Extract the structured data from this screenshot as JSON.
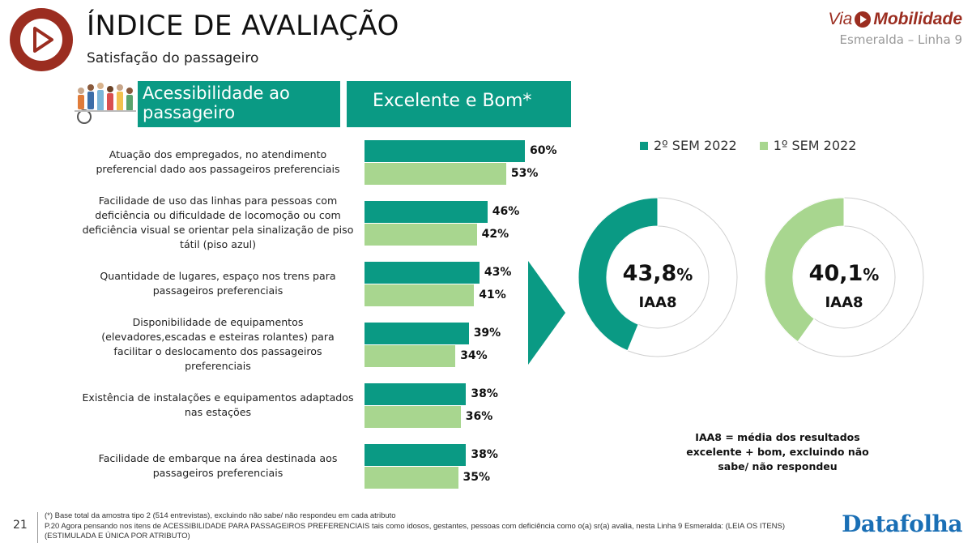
{
  "header": {
    "title": "ÍNDICE DE AVALIAÇÃO",
    "subtitle": "Satisfação do passageiro",
    "brand_via": "Via",
    "brand_mobilidade": "Mobilidade",
    "brand_line": "Esmeralda – Linha 9",
    "logo_icon": "play-icon"
  },
  "section": {
    "title": "Acessibilidade ao passageiro",
    "metric": "Excelente e Bom*"
  },
  "colors": {
    "series_2_sem_2022": "#0a9a84",
    "series_1_sem_2022": "#a8d68f",
    "brand": "#9b2d20"
  },
  "chart_data": [
    {
      "type": "bar",
      "orientation": "horizontal",
      "categories": [
        "Atuação dos empregados, no atendimento preferencial dado aos passageiros preferenciais",
        "Facilidade de uso das linhas para pessoas com deficiência ou dificuldade de locomoção ou com deficiência visual se orientar pela sinalização de piso tátil (piso azul)",
        "Quantidade de lugares, espaço nos trens para passageiros preferenciais",
        "Disponibilidade de equipamentos (elevadores,escadas e esteiras rolantes) para facilitar o deslocamento dos passageiros preferenciais",
        "Existência de instalações e equipamentos adaptados nas estações",
        "Facilidade de embarque na área destinada aos passageiros preferenciais"
      ],
      "series": [
        {
          "name": "2º SEM 2022",
          "values": [
            60,
            46,
            43,
            39,
            38,
            38
          ],
          "labels": [
            "60%",
            "46%",
            "43%",
            "39%",
            "38%",
            "38%"
          ]
        },
        {
          "name": "1º SEM 2022",
          "values": [
            53,
            42,
            41,
            34,
            36,
            35
          ],
          "labels": [
            "53%",
            "42%",
            "41%",
            "34%",
            "36%",
            "35%"
          ]
        }
      ],
      "unit": "%",
      "xlim": [
        0,
        100
      ],
      "grid": false
    },
    {
      "type": "pie",
      "variant": "donut",
      "legend": [
        "2º SEM 2022",
        "1º SEM 2022"
      ],
      "legend_position": "top",
      "donuts": [
        {
          "series": "2º SEM 2022",
          "value": 43.8,
          "number": "43,8",
          "unit": "%",
          "label": "IAA8"
        },
        {
          "series": "1º SEM 2022",
          "value": 40.1,
          "number": "40,1",
          "unit": "%",
          "label": "IAA8"
        }
      ]
    }
  ],
  "note": "IAA8 = média dos resultados excelente + bom, excluindo não sabe/ não respondeu",
  "footer": {
    "page_number": "21",
    "line1": "(*) Base total da amostra tipo 2 (514 entrevistas), excluindo não sabe/ não respondeu em cada atributo",
    "line2": "P.20 Agora pensando nos itens de ACESSIBILIDADE PARA PASSAGEIROS PREFERENCIAIS tais como idosos, gestantes, pessoas com deficiência como o(a) sr(a) avalia, nesta Linha 9 Esmeralda: (LEIA OS ITENS)",
    "line3": "(ESTIMULADA E ÚNICA POR ATRIBUTO)",
    "brand": "Datafolha"
  }
}
